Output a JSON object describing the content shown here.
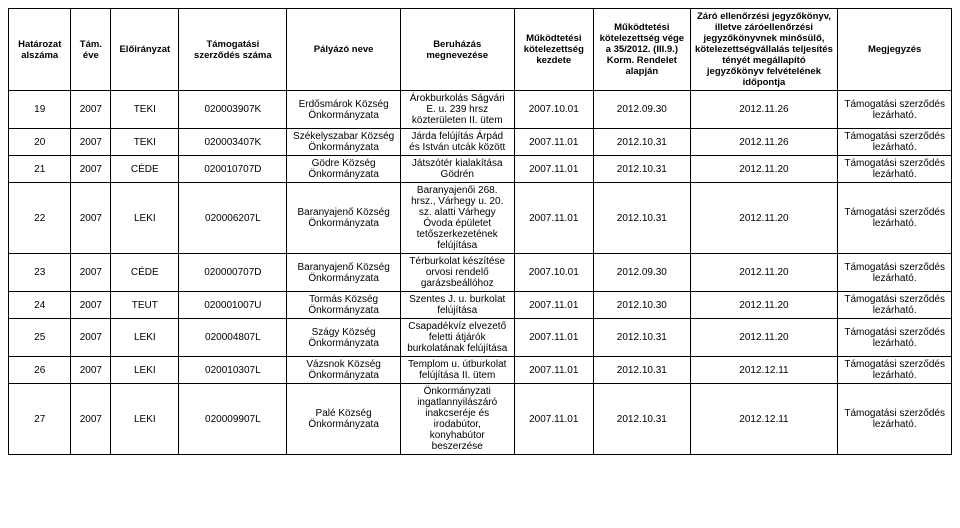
{
  "columns": [
    "Határozat alszáma",
    "Tám. éve",
    "Előirányzat",
    "Támogatási szerződés száma",
    "Pályázó neve",
    "Beruházás megnevezése",
    "Működtetési kötelezettség kezdete",
    "Működtetési kötelezettség vége a 35/2012. (III.9.) Korm. Rendelet alapján",
    "Záró ellenőrzési jegyzőkönyv, illetve záróellenőrzési jegyzőkönyvnek minősülő, kötelezettségvállalás teljesítés tényét megállapító jegyzőkönyv felvételének időpontja",
    "Megjegyzés"
  ],
  "rows": [
    [
      "19",
      "2007",
      "TEKI",
      "020003907K",
      "Erdősmárok Község Önkormányzata",
      "Árokburkolás Ságvári E. u. 239 hrsz közterületen II. ütem",
      "2007.10.01",
      "2012.09.30",
      "2012.11.26",
      "Támogatási szerződés lezárható."
    ],
    [
      "20",
      "2007",
      "TEKI",
      "020003407K",
      "Székelyszabar Község Önkormányzata",
      "Járda felújítás Árpád és István utcák között",
      "2007.11.01",
      "2012.10.31",
      "2012.11.26",
      "Támogatási szerződés lezárható."
    ],
    [
      "21",
      "2007",
      "CÉDE",
      "020010707D",
      "Gödre Község Önkormányzata",
      "Játszótér kialakítása Gödrén",
      "2007.11.01",
      "2012.10.31",
      "2012.11.20",
      "Támogatási szerződés lezárható."
    ],
    [
      "22",
      "2007",
      "LEKI",
      "020006207L",
      "Baranyajenő Község Önkormányzata",
      "Baranyajenői 268. hrsz., Várhegy u. 20. sz. alatti Várhegy Óvoda épületet tetőszerkezetének felújítása",
      "2007.11.01",
      "2012.10.31",
      "2012.11.20",
      "Támogatási szerződés lezárható."
    ],
    [
      "23",
      "2007",
      "CÉDE",
      "020000707D",
      "Baranyajenő Község Önkormányzata",
      "Térburkolat készítése orvosi rendelő garázsbeállóhoz",
      "2007.10.01",
      "2012.09.30",
      "2012.11.20",
      "Támogatási szerződés lezárható."
    ],
    [
      "24",
      "2007",
      "TEUT",
      "020001007U",
      "Tormás Község Önkormányzata",
      "Szentes J. u. burkolat felújítása",
      "2007.11.01",
      "2012.10.30",
      "2012.11.20",
      "Támogatási szerződés lezárható."
    ],
    [
      "25",
      "2007",
      "LEKI",
      "020004807L",
      "Szágy Község Önkormányzata",
      "Csapadékvíz elvezető feletti átjárók burkolatának felújítása",
      "2007.11.01",
      "2012.10.31",
      "2012.11.20",
      "Támogatási szerződés lezárható."
    ],
    [
      "26",
      "2007",
      "LEKI",
      "020010307L",
      "Vázsnok Község Önkormányzata",
      "Templom u. útburkolat felújítása II. ütem",
      "2007.11.01",
      "2012.10.31",
      "2012.12.11",
      "Támogatási szerződés lezárható."
    ],
    [
      "27",
      "2007",
      "LEKI",
      "020009907L",
      "Palé Község Önkormányzata",
      "Önkormányzati ingatlannyilászáró inakcseréje és irodabútor, konyhabútor beszerzése",
      "2007.11.01",
      "2012.10.31",
      "2012.12.11",
      "Támogatási szerződés lezárható."
    ]
  ]
}
